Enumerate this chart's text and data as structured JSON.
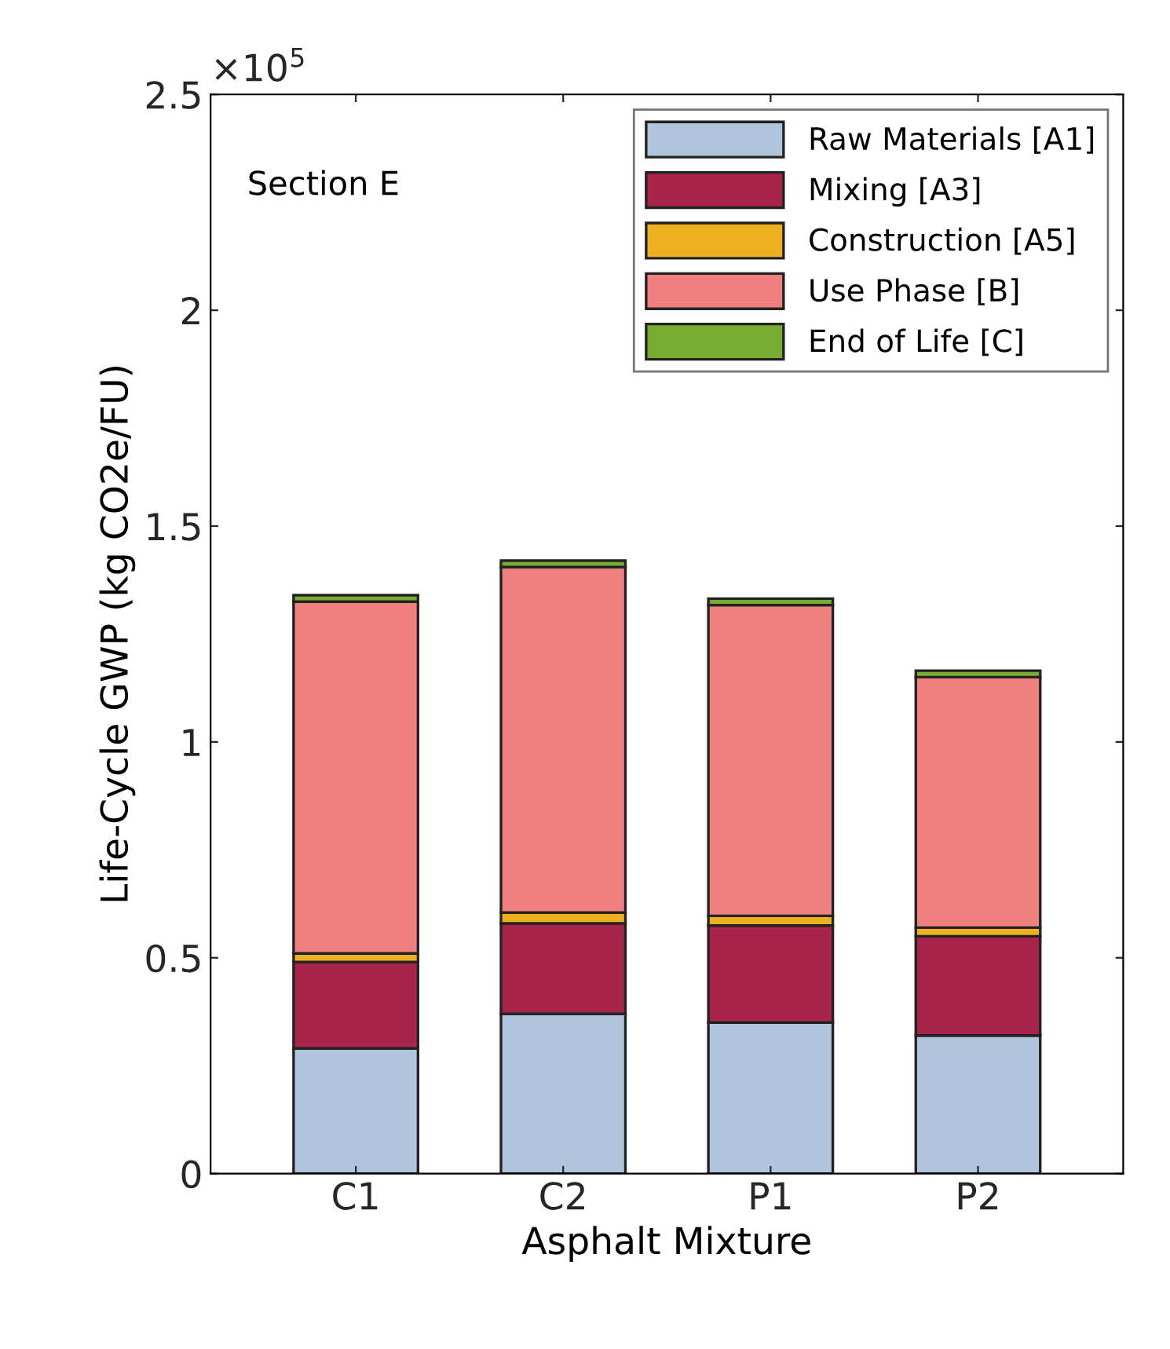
{
  "chart_data": {
    "type": "bar",
    "title": "Section E",
    "xlabel": "Asphalt Mixture",
    "ylabel": "Life-Cycle GWP (kg CO2e/FU)",
    "annotations": [
      "×10$^{5}$"
    ],
    "categories": [
      "C1",
      "C2",
      "P1",
      "P2"
    ],
    "stacked": true,
    "series": [
      {
        "name": "Raw Materials [A1]",
        "color": "#b0c4de",
        "values": [
          0.29,
          0.37,
          0.35,
          0.32
        ]
      },
      {
        "name": "Mixing [A3]",
        "color": "#a8244b",
        "values": [
          0.2,
          0.21,
          0.225,
          0.23
        ]
      },
      {
        "name": "Construction [A5]",
        "color": "#edb120",
        "values": [
          0.02,
          0.025,
          0.022,
          0.02
        ]
      },
      {
        "name": "Use Phase [B]",
        "color": "#f08080",
        "values": [
          0.815,
          0.8,
          0.72,
          0.58
        ]
      },
      {
        "name": "End of Life [C]",
        "color": "#77ac30",
        "values": [
          0.015,
          0.015,
          0.015,
          0.015
        ]
      }
    ],
    "ylim": [
      0,
      2.5
    ],
    "yticks": [
      0,
      0.5,
      1,
      1.5,
      2,
      2.5
    ],
    "legend": "top right",
    "grid": false
  }
}
